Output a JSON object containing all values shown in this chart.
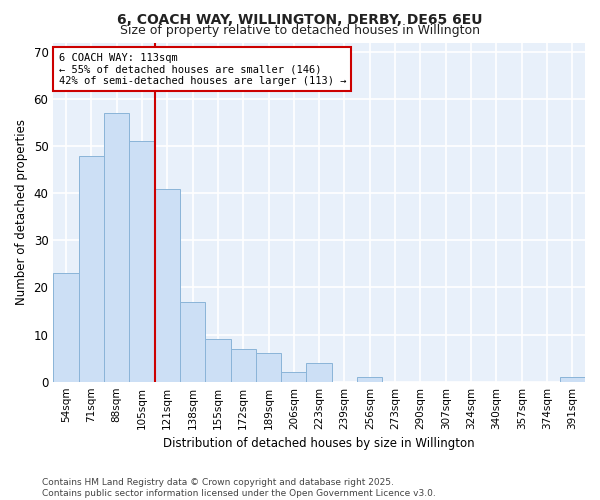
{
  "title1": "6, COACH WAY, WILLINGTON, DERBY, DE65 6EU",
  "title2": "Size of property relative to detached houses in Willington",
  "xlabel": "Distribution of detached houses by size in Willington",
  "ylabel": "Number of detached properties",
  "categories": [
    "54sqm",
    "71sqm",
    "88sqm",
    "105sqm",
    "121sqm",
    "138sqm",
    "155sqm",
    "172sqm",
    "189sqm",
    "206sqm",
    "223sqm",
    "239sqm",
    "256sqm",
    "273sqm",
    "290sqm",
    "307sqm",
    "324sqm",
    "340sqm",
    "357sqm",
    "374sqm",
    "391sqm"
  ],
  "values": [
    23,
    48,
    57,
    51,
    41,
    17,
    9,
    7,
    6,
    2,
    4,
    0,
    1,
    0,
    0,
    0,
    0,
    0,
    0,
    0,
    1
  ],
  "bar_color": "#ccdff5",
  "bar_edge_color": "#8ab4d8",
  "fig_background": "#ffffff",
  "plot_background": "#e8f0fa",
  "grid_color": "#ffffff",
  "redline_index": 3.5,
  "annotation_title": "6 COACH WAY: 113sqm",
  "annotation_line1": "← 55% of detached houses are smaller (146)",
  "annotation_line2": "42% of semi-detached houses are larger (113) →",
  "annotation_box_facecolor": "#ffffff",
  "annotation_box_edgecolor": "#cc0000",
  "redline_color": "#cc0000",
  "ylim": [
    0,
    72
  ],
  "yticks": [
    0,
    10,
    20,
    30,
    40,
    50,
    60,
    70
  ],
  "footer1": "Contains HM Land Registry data © Crown copyright and database right 2025.",
  "footer2": "Contains public sector information licensed under the Open Government Licence v3.0."
}
